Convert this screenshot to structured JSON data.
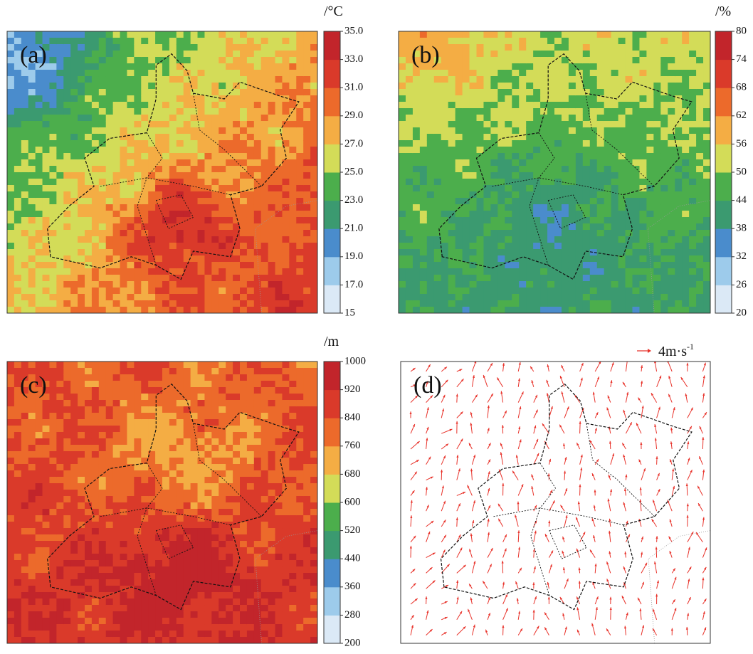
{
  "panels": [
    {
      "label": "(a)",
      "unit": "/°C",
      "ticks": [
        15,
        {
          "value": 17,
          "label": "17.0"
        },
        {
          "value": 19,
          "label": "19.0"
        },
        {
          "value": 21,
          "label": "21.0"
        },
        {
          "value": 23,
          "label": "23.0"
        },
        {
          "value": 25,
          "label": "25.0"
        },
        {
          "value": 27,
          "label": "27.0"
        },
        {
          "value": 29,
          "label": "29.0"
        },
        {
          "value": 31,
          "label": "31.0"
        },
        {
          "value": 33,
          "label": "33.0"
        },
        {
          "value": 35,
          "label": "35.0"
        }
      ]
    },
    {
      "label": "(b)",
      "unit": "/%",
      "ticks": [
        20,
        26,
        32,
        38,
        44,
        50,
        56,
        62,
        68,
        74,
        80
      ]
    },
    {
      "label": "(c)",
      "unit": "/m",
      "ticks": [
        200,
        280,
        360,
        440,
        520,
        600,
        680,
        760,
        840,
        920,
        1000
      ]
    },
    {
      "label": "(d)",
      "wind_legend": {
        "text": "4m·s",
        "superscript": "-1"
      }
    }
  ],
  "colors": [
    "#dbe9f6",
    "#9dcbeb",
    "#4a8ccc",
    "#3b9a70",
    "#4cae4c",
    "#d3dc58",
    "#f4ad44",
    "#ec6a2b",
    "#da3a2a",
    "#c2252b"
  ],
  "arrow_color": "#e8322a"
}
